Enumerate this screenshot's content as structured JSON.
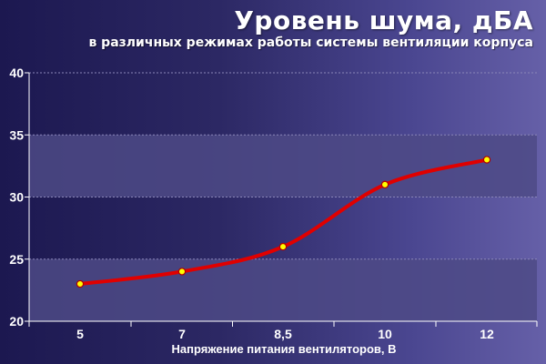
{
  "chart_data": {
    "type": "line",
    "title": "Уровень шума, дБА",
    "subtitle": "в различных режимах работы системы вентиляции корпуса",
    "xlabel": "Напряжение питания вентиляторов, В",
    "ylabel": "",
    "categories": [
      "5",
      "7",
      "8,5",
      "10",
      "12"
    ],
    "series": [
      {
        "values": [
          23,
          24,
          26,
          31,
          33
        ]
      }
    ],
    "ylim": [
      20,
      40
    ],
    "yticks": [
      "20",
      "25",
      "30",
      "35",
      "40"
    ],
    "grid": true,
    "legend": "none",
    "colors": {
      "line": "#e00000",
      "marker_fill": "#ffff00",
      "marker_stroke": "#b00000",
      "band": "#4e4a86",
      "grid": "#8a86b8",
      "axis": "#ffffff",
      "text": "#ffffff"
    }
  }
}
